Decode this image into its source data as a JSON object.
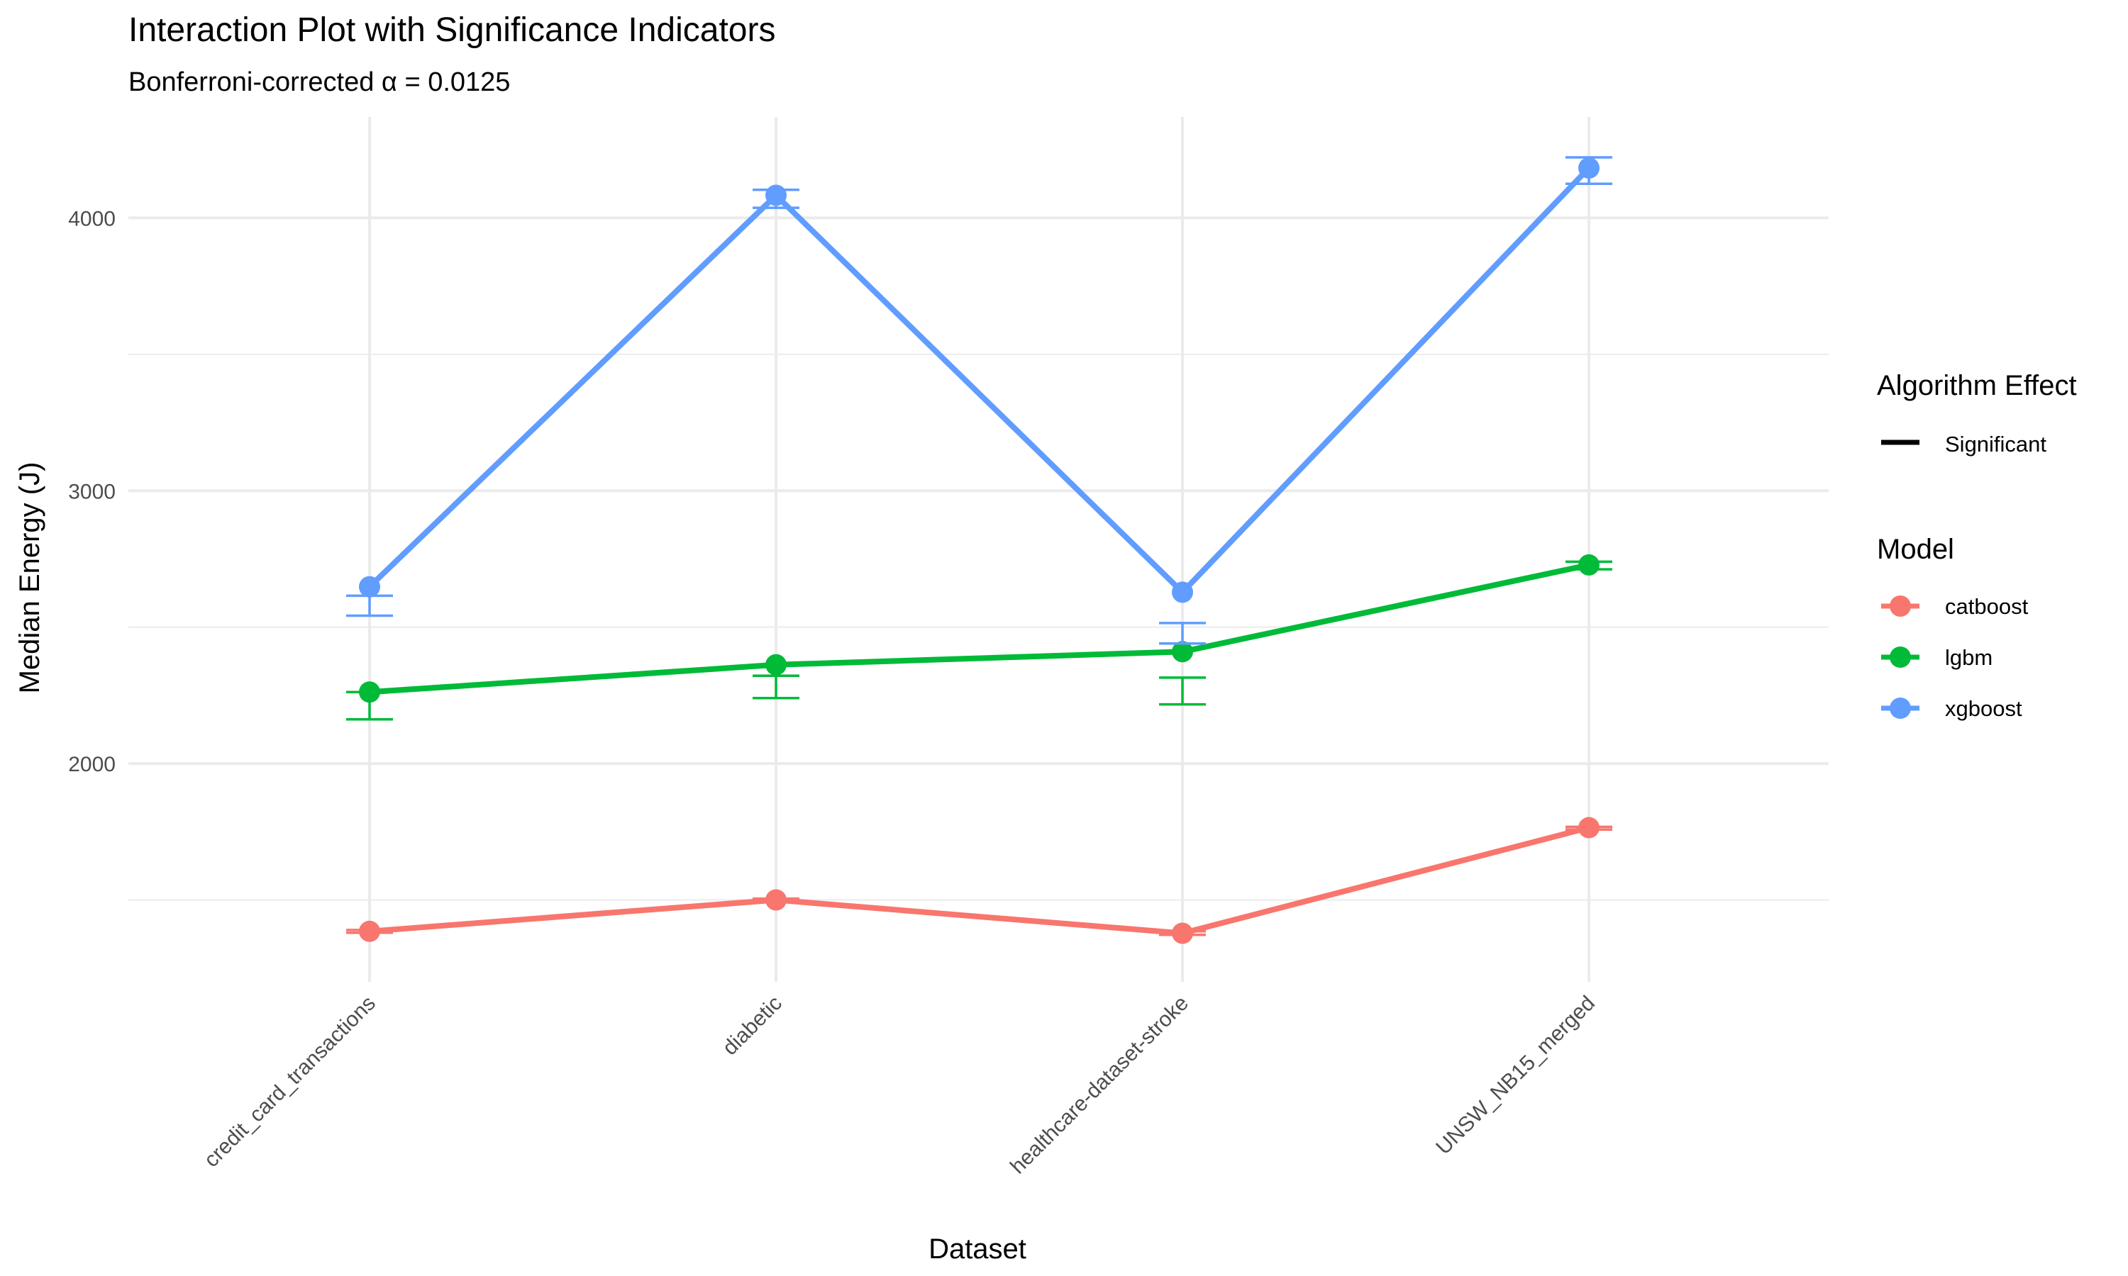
{
  "chart_data": {
    "type": "line",
    "title": "Interaction Plot with Significance Indicators",
    "subtitle": "Bonferroni-corrected α = 0.0125",
    "xlabel": "Dataset",
    "ylabel": "Median Energy (J)",
    "categories": [
      "credit_card_transactions",
      "diabetic",
      "healthcare-dataset-stroke",
      "UNSW_NB15_merged"
    ],
    "ylim": [
      1200,
      4370
    ],
    "yticks": [
      2000,
      3000,
      4000
    ],
    "ytick_labels": [
      "2000",
      "3000",
      "4000"
    ],
    "grid": true,
    "legend_position": "right",
    "series": [
      {
        "name": "catboost",
        "color": "#F8766D",
        "values": [
          1385,
          1500,
          1378,
          1765
        ],
        "err_low": [
          1380,
          1493,
          1372,
          1758
        ],
        "err_high": [
          1390,
          1505,
          1385,
          1768
        ]
      },
      {
        "name": "lgbm",
        "color": "#00BA38",
        "values": [
          2262,
          2362,
          2410,
          2728
        ],
        "err_low": [
          2162,
          2240,
          2217,
          2712
        ],
        "err_high": [
          2262,
          2322,
          2315,
          2740
        ]
      },
      {
        "name": "xgboost",
        "color": "#619CFF",
        "values": [
          2648,
          4083,
          2628,
          4183
        ],
        "err_low": [
          2542,
          4037,
          2440,
          4125
        ],
        "err_high": [
          2615,
          4103,
          2515,
          4222
        ]
      }
    ],
    "legend": {
      "effect_title": "Algorithm Effect",
      "effect_label": "Significant",
      "model_title": "Model"
    }
  }
}
